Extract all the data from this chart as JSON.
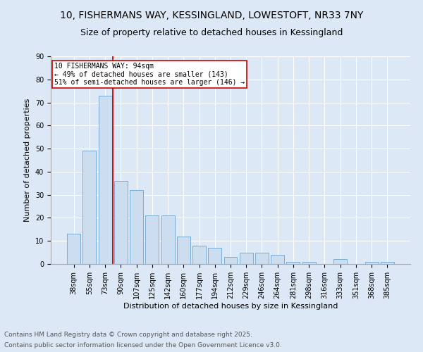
{
  "title_line1": "10, FISHERMANS WAY, KESSINGLAND, LOWESTOFT, NR33 7NY",
  "title_line2": "Size of property relative to detached houses in Kessingland",
  "xlabel": "Distribution of detached houses by size in Kessingland",
  "ylabel": "Number of detached properties",
  "categories": [
    "38sqm",
    "55sqm",
    "73sqm",
    "90sqm",
    "107sqm",
    "125sqm",
    "142sqm",
    "160sqm",
    "177sqm",
    "194sqm",
    "212sqm",
    "229sqm",
    "246sqm",
    "264sqm",
    "281sqm",
    "298sqm",
    "316sqm",
    "333sqm",
    "351sqm",
    "368sqm",
    "385sqm"
  ],
  "values": [
    13,
    49,
    73,
    36,
    32,
    21,
    21,
    12,
    8,
    7,
    3,
    5,
    5,
    4,
    1,
    1,
    0,
    2,
    0,
    1,
    1
  ],
  "bar_color": "#ccddf0",
  "bar_edge_color": "#7aadd4",
  "vline_x_index": 2.5,
  "vline_color": "#cc0000",
  "annotation_text": "10 FISHERMANS WAY: 94sqm\n← 49% of detached houses are smaller (143)\n51% of semi-detached houses are larger (146) →",
  "annotation_box_color": "#ffffff",
  "annotation_box_edge": "#cc0000",
  "ylim": [
    0,
    90
  ],
  "yticks": [
    0,
    10,
    20,
    30,
    40,
    50,
    60,
    70,
    80,
    90
  ],
  "bg_color": "#dce8f5",
  "plot_bg_color": "#dce8f5",
  "footer_line1": "Contains HM Land Registry data © Crown copyright and database right 2025.",
  "footer_line2": "Contains public sector information licensed under the Open Government Licence v3.0.",
  "title_fontsize": 10,
  "subtitle_fontsize": 9,
  "axis_label_fontsize": 8,
  "tick_fontsize": 7,
  "annotation_fontsize": 7,
  "footer_fontsize": 6.5
}
